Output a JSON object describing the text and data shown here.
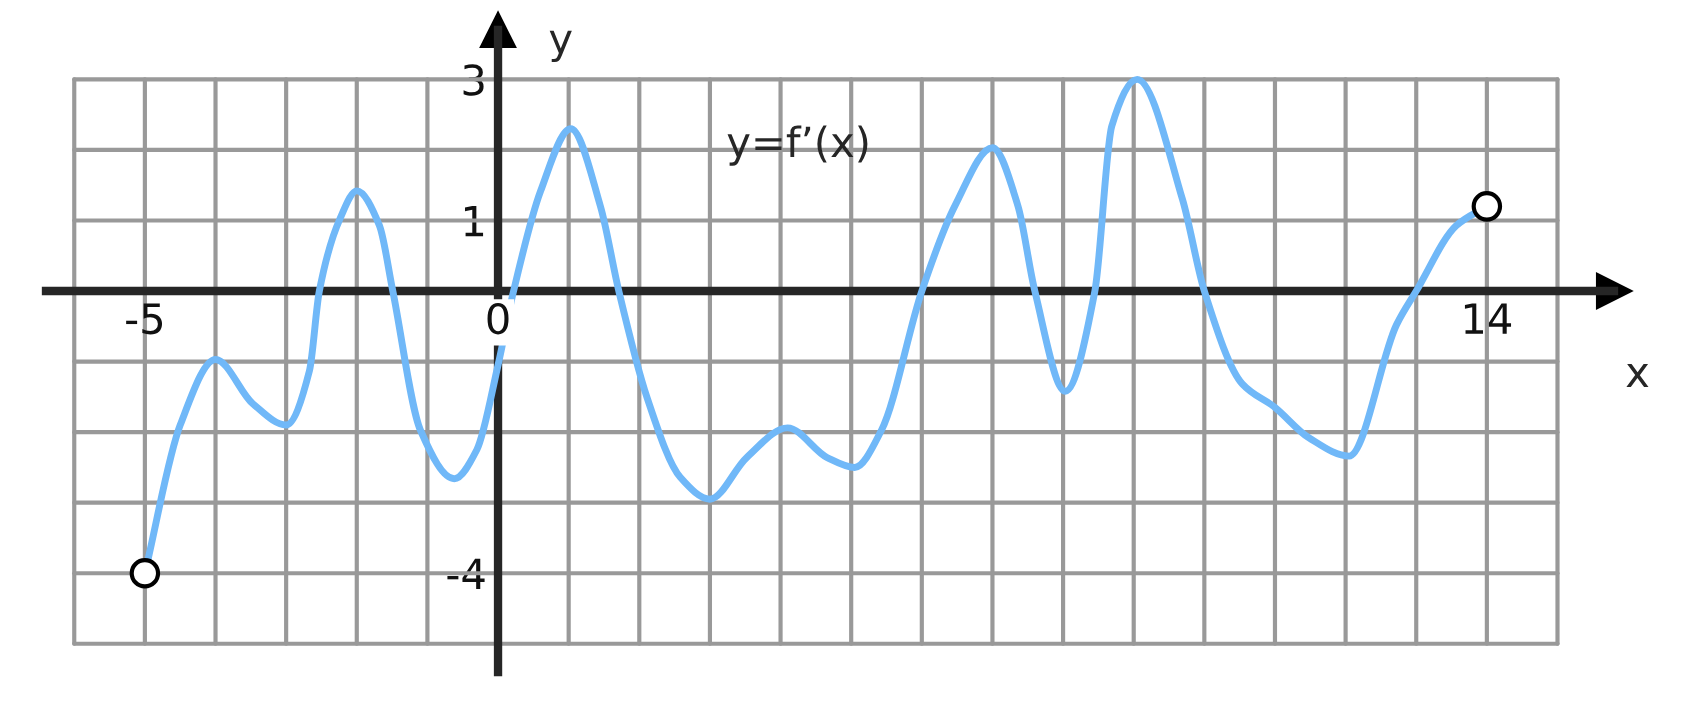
{
  "chart_data": {
    "type": "line",
    "xlabel": "x",
    "ylabel": "y",
    "annotations": [
      "y=f’(x)"
    ],
    "xlim": [
      -6.4,
      15.8
    ],
    "ylim": [
      -5.4,
      3.7
    ],
    "xticks": [
      {
        "value": -6,
        "label": null
      },
      -5,
      {
        "value": -4,
        "label": null
      },
      {
        "value": -3,
        "label": null
      },
      {
        "value": -2,
        "label": null
      },
      {
        "value": -1,
        "label": null
      },
      0,
      {
        "value": 1,
        "label": null
      },
      {
        "value": 2,
        "label": null
      },
      {
        "value": 3,
        "label": null
      },
      {
        "value": 4,
        "label": null
      },
      {
        "value": 5,
        "label": null
      },
      {
        "value": 6,
        "label": null
      },
      {
        "value": 7,
        "label": null
      },
      {
        "value": 8,
        "label": null
      },
      {
        "value": 9,
        "label": null
      },
      {
        "value": 10,
        "label": null
      },
      {
        "value": 11,
        "label": null
      },
      {
        "value": 12,
        "label": null
      },
      {
        "value": 13,
        "label": null
      },
      14,
      {
        "value": 15,
        "label": null
      }
    ],
    "yticks": [
      {
        "value": -5,
        "label": null
      },
      -4,
      {
        "value": -3,
        "label": null
      },
      {
        "value": -2,
        "label": null
      },
      {
        "value": -1,
        "label": null
      },
      {
        "value": 0,
        "label": null
      },
      1,
      {
        "value": 2,
        "label": null
      },
      3
    ],
    "grid": true,
    "series": [
      {
        "color": "#70b8f8",
        "marker": "none",
        "line_style": "solid",
        "x": [
          -5,
          -4.5,
          -4,
          -3.47,
          -3,
          -2.67,
          -2.53,
          -2.24,
          -2,
          -1.68,
          -1.49,
          -1.1,
          -0.62,
          -0.3,
          0,
          0.22,
          0.6,
          1.03,
          1.45,
          1.71,
          2.11,
          2.58,
          3,
          3.52,
          4.1,
          4.66,
          5.05,
          5.43,
          6,
          6.47,
          7,
          7.36,
          7.6,
          8.03,
          8.45,
          8.69,
          9.05,
          9.69,
          10,
          10.54,
          11,
          11.48,
          12.05,
          12.72,
          13,
          13.57,
          14
        ],
        "values": [
          -4,
          -1.9,
          -0.97,
          -1.6,
          -1.9,
          -1.13,
          0,
          1.02,
          1.42,
          0.93,
          0,
          -1.97,
          -2.66,
          -2.25,
          -1.05,
          0,
          1.41,
          2.3,
          1.2,
          0,
          -1.51,
          -2.64,
          -2.95,
          -2.36,
          -1.94,
          -2.36,
          -2.5,
          -1.97,
          0,
          1.21,
          2.03,
          1.21,
          0,
          -1.42,
          0,
          2.34,
          3.0,
          1.3,
          0,
          -1.32,
          -1.65,
          -2.08,
          -2.34,
          -0.48,
          0,
          0.93,
          1.2
        ]
      },
      {
        "type": "scatter",
        "color": "#000000",
        "marker": "circle",
        "x": [
          -5,
          14
        ],
        "values": [
          -4,
          1.2
        ]
      }
    ]
  }
}
